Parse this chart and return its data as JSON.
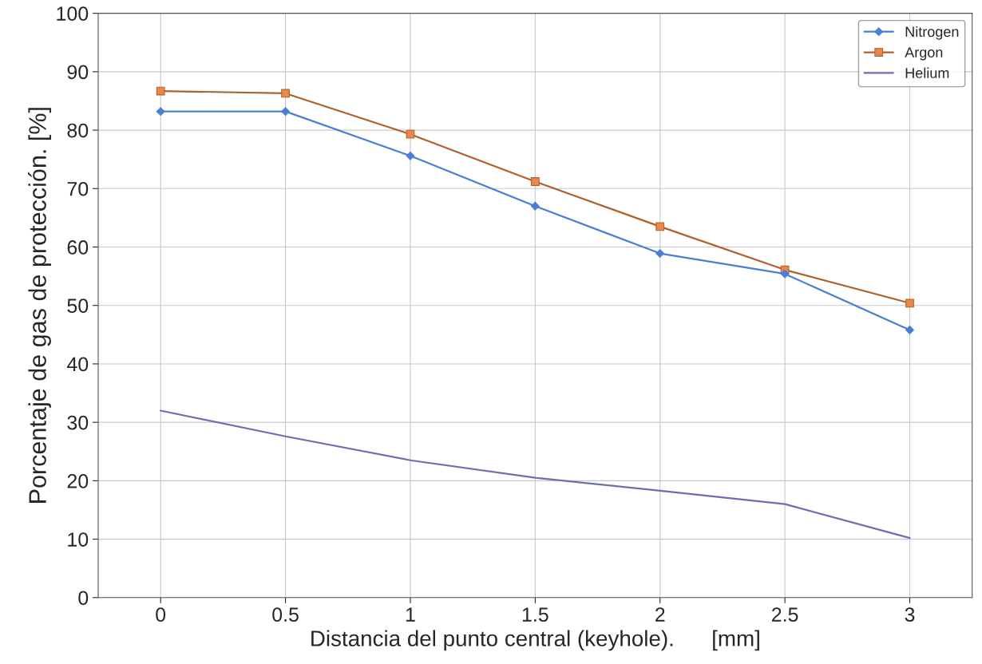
{
  "chart_data": {
    "type": "line",
    "xlabel": "Distancia del punto central (keyhole).      [mm]",
    "ylabel": "Porcentaje de gas de protección. [%]",
    "categories": [
      "0",
      "0.5",
      "1",
      "1.5",
      "2",
      "2.5",
      "3"
    ],
    "series": [
      {
        "name": "Nitrogen",
        "color": "#4a7fd4",
        "marker": "diamond",
        "values": [
          83.2,
          83.2,
          75.6,
          67,
          58.9,
          55.4,
          45.8
        ]
      },
      {
        "name": "Argon",
        "color": "#b0602a",
        "marker": "square",
        "values": [
          86.7,
          86.3,
          79.3,
          71.2,
          63.5,
          56.1,
          50.4
        ]
      },
      {
        "name": "Helium",
        "color": "#6b6fb0",
        "marker": "none",
        "values": [
          32,
          27.6,
          23.5,
          20.5,
          18.3,
          16,
          10.2
        ]
      }
    ],
    "ylim": [
      0,
      100
    ],
    "yticks": [
      0,
      10,
      20,
      30,
      40,
      50,
      60,
      70,
      80,
      90,
      100
    ],
    "grid": true,
    "legend": "top right"
  }
}
